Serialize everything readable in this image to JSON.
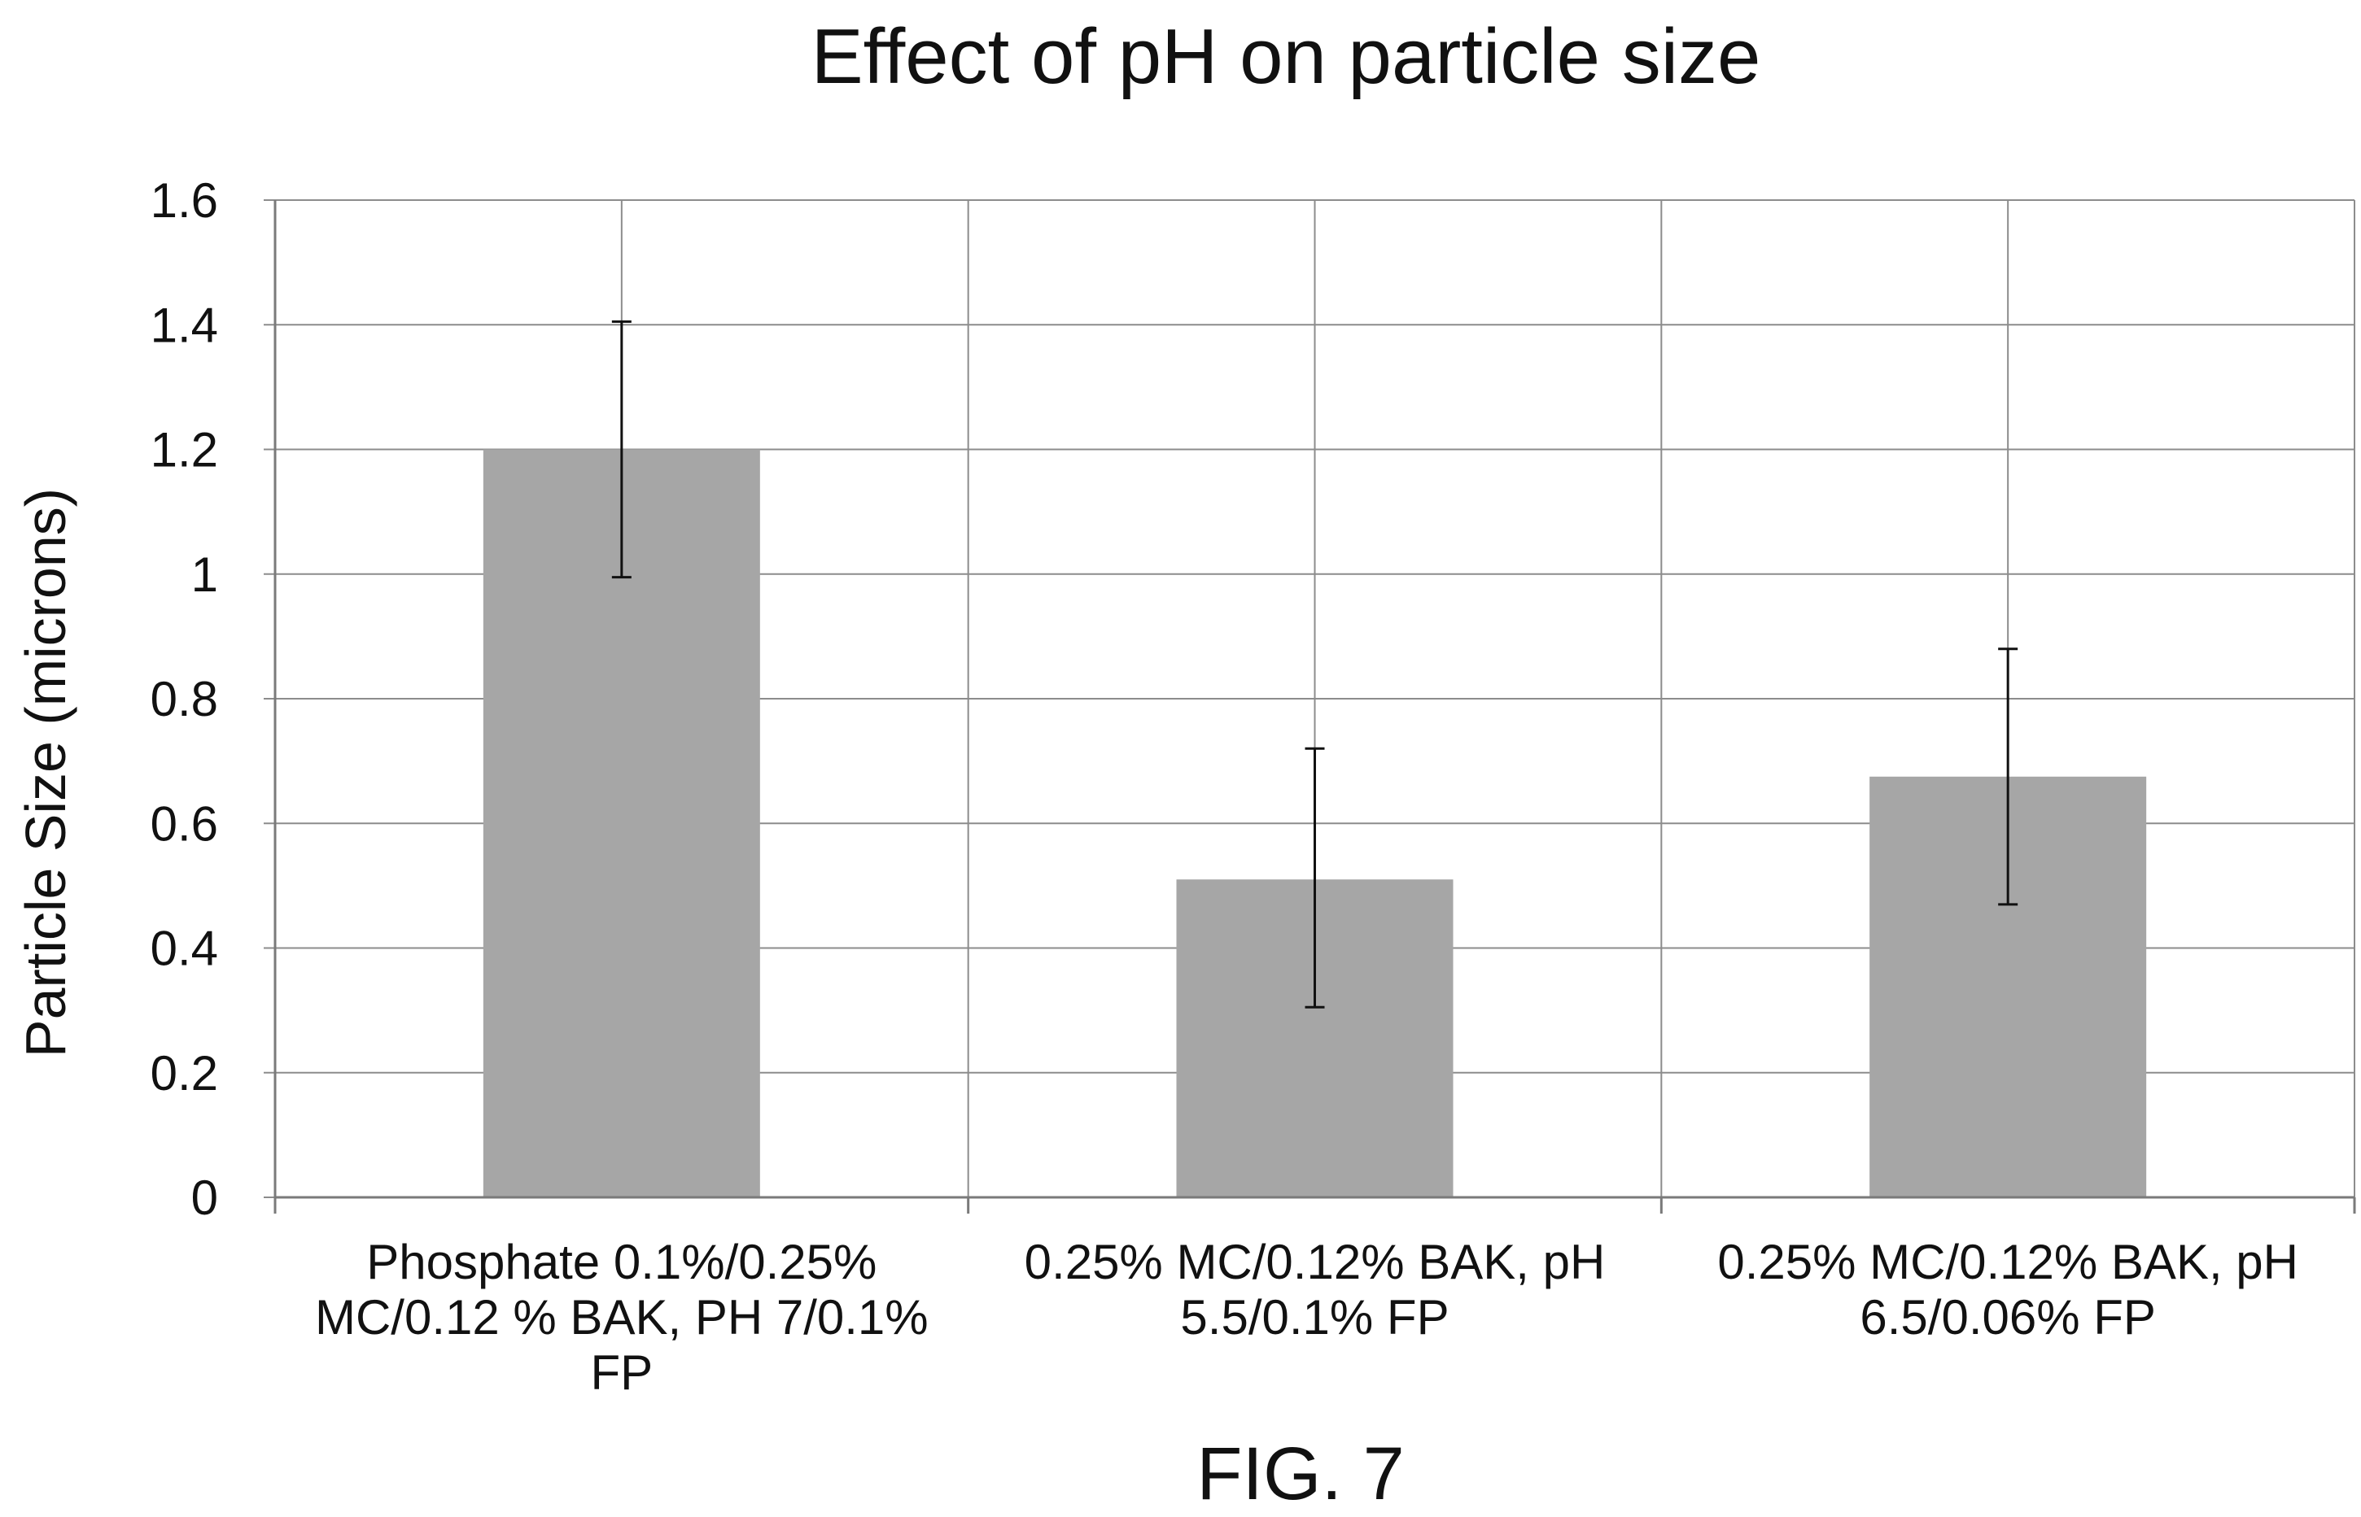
{
  "chart_data": {
    "type": "bar",
    "title": "Effect of pH on particle size",
    "ylabel": "Particle Size (microns)",
    "xlabel": "",
    "ylim": [
      0,
      1.6
    ],
    "yticks": [
      0,
      0.2,
      0.4,
      0.6,
      0.8,
      1,
      1.2,
      1.4,
      1.6
    ],
    "ytick_labels": [
      "0",
      "0.2",
      "0.4",
      "0.6",
      "0.8",
      "1",
      "1.2",
      "1.4",
      "1.6"
    ],
    "grid": true,
    "categories": [
      [
        "Phosphate 0.1%/0.25%",
        "MC/0.12 % BAK, PH 7/0.1%",
        "FP"
      ],
      [
        "0.25% MC/0.12% BAK, pH",
        "5.5/0.1% FP"
      ],
      [
        "0.25% MC/0.12% BAK, pH",
        "6.5/0.06% FP"
      ]
    ],
    "values": [
      1.2,
      0.51,
      0.675
    ],
    "error_low": [
      0.995,
      0.305,
      0.47
    ],
    "error_high": [
      1.405,
      0.72,
      0.88
    ],
    "bar_color": "#a6a6a6"
  },
  "figure_label": "FIG. 7"
}
